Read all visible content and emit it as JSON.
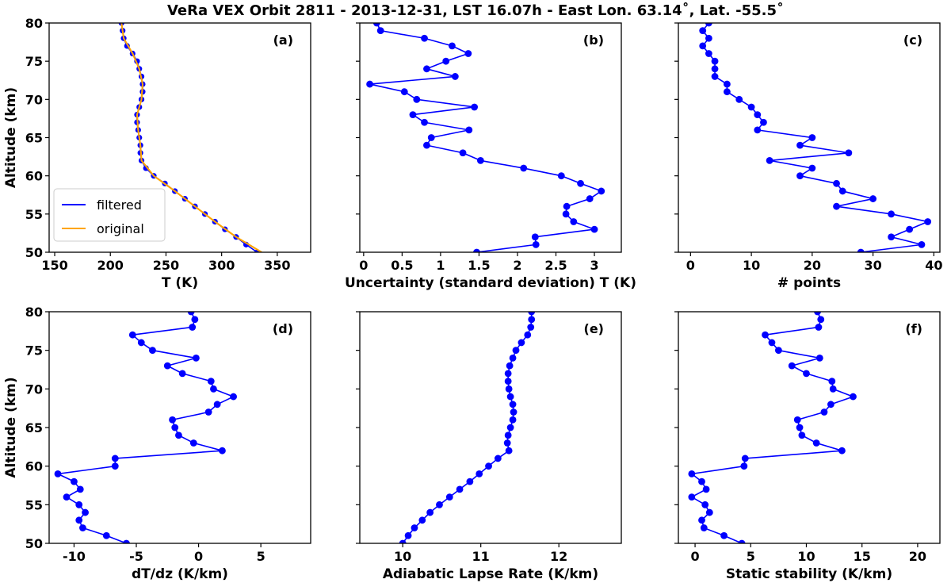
{
  "title": "VeRa VEX Orbit 2811 - 2013-12-31, LST 16.07h - East Lon. 63.14˚, Lat. -55.5˚",
  "colors": {
    "series": "#0000ff",
    "original": "#ffa500",
    "marker": "#0000ff"
  },
  "chart_data": [
    {
      "id": "a",
      "type": "line",
      "panel_label": "(a)",
      "xlabel": "T (K)",
      "ylabel": "Altitude (km)",
      "xlim": [
        145,
        380
      ],
      "ylim": [
        50,
        80
      ],
      "xticks": [
        150,
        200,
        250,
        300,
        350
      ],
      "xtick_labels": [
        "150",
        "200",
        "250",
        "300",
        "350"
      ],
      "yticks": [
        50,
        55,
        60,
        65,
        70,
        75,
        80
      ],
      "ytick_labels": [
        "50",
        "55",
        "60",
        "65",
        "70",
        "75",
        "80"
      ],
      "legend": {
        "position": "lower-left",
        "entries": [
          "filtered",
          "original"
        ]
      },
      "series": [
        {
          "name": "filtered",
          "marker": "circle",
          "altitude": [
            80,
            79,
            78,
            77,
            76,
            75,
            74,
            73,
            72,
            71,
            70,
            69,
            68,
            67,
            66,
            65,
            64,
            63,
            62,
            61,
            60,
            59,
            58,
            57,
            56,
            55,
            54,
            53,
            52,
            51,
            50
          ],
          "values": [
            210,
            211,
            212,
            215,
            220,
            224,
            226,
            228,
            229,
            229,
            228,
            226,
            224,
            224,
            225,
            226,
            227,
            227,
            228,
            232,
            239,
            249,
            258,
            267,
            276,
            285,
            294,
            303,
            313,
            322,
            332
          ]
        },
        {
          "name": "original",
          "altitude": [
            80,
            78,
            76,
            74,
            72,
            70,
            68,
            66,
            64,
            62,
            60,
            58,
            56,
            54,
            52,
            50
          ],
          "values": [
            210,
            212,
            220,
            226,
            229,
            228,
            224,
            225,
            227,
            228,
            239,
            258,
            276,
            294,
            313,
            336
          ]
        }
      ]
    },
    {
      "id": "b",
      "type": "line",
      "panel_label": "(b)",
      "xlabel": "Uncertainty (standard deviation) T (K)",
      "ylabel": "",
      "xlim": [
        -0.05,
        3.35
      ],
      "ylim": [
        50,
        80
      ],
      "xticks": [
        0,
        0.5,
        1,
        1.5,
        2,
        2.5,
        3
      ],
      "xtick_labels": [
        "0",
        "0.5",
        "1",
        "1.5",
        "2",
        "2.5",
        "3"
      ],
      "yticks": [
        50,
        55,
        60,
        65,
        70,
        75,
        80
      ],
      "ytick_labels": [],
      "series": [
        {
          "name": "uncertainty",
          "marker": "circle",
          "altitude": [
            80,
            79,
            78,
            77,
            76,
            75,
            74,
            73,
            72,
            71,
            70,
            69,
            68,
            67,
            66,
            65,
            64,
            63,
            62,
            61,
            60,
            59,
            58,
            57,
            56,
            55,
            54,
            53,
            52,
            51,
            50
          ],
          "values": [
            0.17,
            0.22,
            0.79,
            1.15,
            1.36,
            1.07,
            0.82,
            1.19,
            0.08,
            0.53,
            0.69,
            1.44,
            0.64,
            0.79,
            1.37,
            0.88,
            0.82,
            1.29,
            1.52,
            2.08,
            2.57,
            2.82,
            3.09,
            2.94,
            2.64,
            2.63,
            2.73,
            3.0,
            2.23,
            2.24,
            1.47
          ]
        }
      ]
    },
    {
      "id": "c",
      "type": "line",
      "panel_label": "(c)",
      "xlabel": "# points",
      "ylabel": "",
      "xlim": [
        -2,
        41
      ],
      "ylim": [
        50,
        80
      ],
      "xticks": [
        0,
        10,
        20,
        30,
        40
      ],
      "xtick_labels": [
        "0",
        "10",
        "20",
        "30",
        "40"
      ],
      "yticks": [
        50,
        55,
        60,
        65,
        70,
        75,
        80
      ],
      "ytick_labels": [],
      "series": [
        {
          "name": "points",
          "marker": "circle",
          "altitude": [
            80,
            79,
            78,
            77,
            76,
            75,
            74,
            73,
            72,
            71,
            70,
            69,
            68,
            67,
            66,
            65,
            64,
            63,
            62,
            61,
            60,
            59,
            58,
            57,
            56,
            55,
            54,
            53,
            52,
            51,
            50
          ],
          "values": [
            3,
            2,
            3,
            2,
            3,
            4,
            4,
            4,
            6,
            6,
            8,
            10,
            11,
            12,
            11,
            20,
            18,
            26,
            13,
            20,
            18,
            24,
            25,
            30,
            24,
            33,
            39,
            36,
            33,
            38,
            28
          ]
        }
      ]
    },
    {
      "id": "d",
      "type": "line",
      "panel_label": "(d)",
      "xlabel": "dT/dz (K/km)",
      "ylabel": "Altitude (km)",
      "xlim": [
        -12,
        9
      ],
      "ylim": [
        50,
        80
      ],
      "xticks": [
        -10,
        -5,
        0,
        5
      ],
      "xtick_labels": [
        "-10",
        "-5",
        "0",
        "5"
      ],
      "yticks": [
        50,
        55,
        60,
        65,
        70,
        75,
        80
      ],
      "ytick_labels": [
        "50",
        "55",
        "60",
        "65",
        "70",
        "75",
        "80"
      ],
      "series": [
        {
          "name": "dT/dz",
          "marker": "circle",
          "altitude": [
            80,
            79,
            78,
            77,
            76,
            75,
            74,
            73,
            72,
            71,
            70,
            69,
            68,
            67,
            66,
            65,
            64,
            63,
            62,
            61,
            60,
            59,
            58,
            57,
            56,
            55,
            54,
            53,
            52,
            51,
            50
          ],
          "values": [
            -0.6,
            -0.3,
            -0.5,
            -5.3,
            -4.6,
            -3.7,
            -0.2,
            -2.5,
            -1.3,
            1.0,
            1.2,
            2.8,
            1.5,
            0.8,
            -2.1,
            -1.9,
            -1.6,
            -0.4,
            1.9,
            -6.7,
            -6.7,
            -11.3,
            -10.0,
            -9.5,
            -10.6,
            -9.6,
            -9.1,
            -9.6,
            -9.3,
            -7.4,
            -5.8
          ]
        }
      ]
    },
    {
      "id": "e",
      "type": "line",
      "panel_label": "(e)",
      "xlabel": "Adiabatic Lapse Rate (K/km)",
      "ylabel": "",
      "xlim": [
        9.45,
        12.8
      ],
      "ylim": [
        50,
        80
      ],
      "xticks": [
        10,
        11,
        12
      ],
      "xtick_labels": [
        "10",
        "11",
        "12"
      ],
      "yticks": [
        50,
        55,
        60,
        65,
        70,
        75,
        80
      ],
      "ytick_labels": [],
      "series": [
        {
          "name": "lapse rate",
          "marker": "circle",
          "altitude": [
            80,
            79,
            78,
            77,
            76,
            75,
            74,
            73,
            72,
            71,
            70,
            69,
            68,
            67,
            66,
            65,
            64,
            63,
            62,
            61,
            60,
            59,
            58,
            57,
            56,
            55,
            54,
            53,
            52,
            51,
            50
          ],
          "values": [
            11.65,
            11.65,
            11.64,
            11.6,
            11.52,
            11.45,
            11.41,
            11.37,
            11.35,
            11.35,
            11.36,
            11.38,
            11.41,
            11.42,
            11.41,
            11.38,
            11.35,
            11.34,
            11.36,
            11.22,
            11.1,
            10.98,
            10.86,
            10.73,
            10.6,
            10.47,
            10.35,
            10.25,
            10.15,
            10.07,
            10.0
          ]
        }
      ]
    },
    {
      "id": "f",
      "type": "line",
      "panel_label": "(f)",
      "xlabel": "Static stability (K/km)",
      "ylabel": "",
      "xlim": [
        -1.5,
        22
      ],
      "ylim": [
        50,
        80
      ],
      "xticks": [
        0,
        5,
        10,
        15,
        20
      ],
      "xtick_labels": [
        "0",
        "5",
        "10",
        "15",
        "20"
      ],
      "yticks": [
        50,
        55,
        60,
        65,
        70,
        75,
        80
      ],
      "ytick_labels": [],
      "series": [
        {
          "name": "static stability",
          "marker": "circle",
          "altitude": [
            80,
            79,
            78,
            77,
            76,
            75,
            74,
            73,
            72,
            71,
            70,
            69,
            68,
            67,
            66,
            65,
            64,
            63,
            62,
            61,
            60,
            59,
            58,
            57,
            56,
            55,
            54,
            53,
            52,
            51,
            50
          ],
          "values": [
            11.0,
            11.3,
            11.1,
            6.3,
            6.9,
            7.5,
            11.2,
            8.7,
            10.0,
            12.3,
            12.4,
            14.2,
            12.2,
            11.6,
            9.2,
            9.4,
            9.6,
            10.9,
            13.2,
            4.5,
            4.4,
            -0.3,
            0.6,
            1.0,
            -0.3,
            0.9,
            1.3,
            0.6,
            0.8,
            2.6,
            4.2
          ]
        }
      ]
    }
  ]
}
